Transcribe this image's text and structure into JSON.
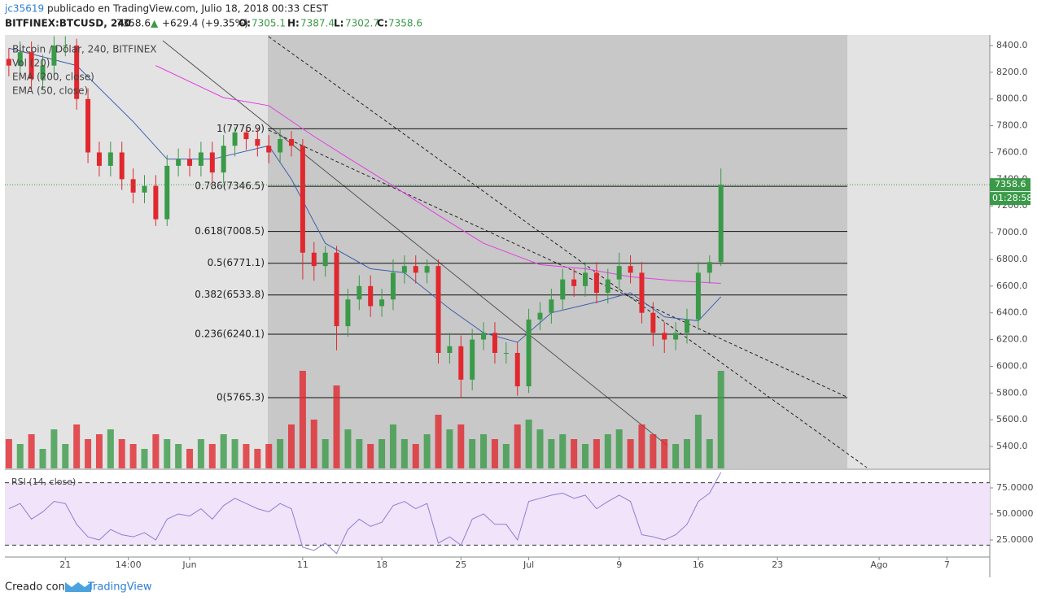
{
  "header": {
    "user": "jc35619",
    "published": "publicado en TradingView.com, Julio 18, 2018 00:33 CEST",
    "symbol": "BITFINEX:BTCUSD, 240",
    "last": 7358.6,
    "arrow": "▲",
    "change": "+629.4 (+9.35%)",
    "o_label": "O:",
    "open": 7305.1,
    "h_label": "H:",
    "high": 7387.4,
    "l_label": "L:",
    "low": 7302.7,
    "c_label": "C:",
    "close": 7358.6
  },
  "chart_data": {
    "type": "candlestick",
    "title": "Bitcoin / Dólar, 240, BITFINEX",
    "up_color": "#3a9a48",
    "down_color": "#e0282e",
    "x": [
      -16,
      -15,
      -14,
      -13,
      -12,
      -11,
      -10,
      -9,
      -8,
      -7,
      -6,
      -5,
      -4,
      -3,
      -2,
      -1,
      0,
      1,
      2,
      3,
      4,
      5,
      6,
      7,
      8,
      9,
      10,
      11,
      12,
      13,
      14,
      15,
      16,
      17,
      18,
      19,
      20,
      21,
      22,
      23,
      24,
      25,
      26,
      27,
      28,
      29,
      30,
      31,
      32,
      33,
      34,
      35,
      36,
      37,
      38,
      39,
      40,
      41,
      42,
      43,
      44,
      45,
      46,
      47
    ],
    "ohlc": [
      [
        8300,
        8380,
        8170,
        8250
      ],
      [
        8250,
        8430,
        8170,
        8350
      ],
      [
        8350,
        8430,
        8070,
        8150
      ],
      [
        8150,
        8330,
        8070,
        8250
      ],
      [
        8250,
        8470,
        8170,
        8400
      ],
      [
        8400,
        8470,
        8320,
        8400
      ],
      [
        8400,
        8450,
        7920,
        8000
      ],
      [
        8000,
        8080,
        7520,
        7600
      ],
      [
        7600,
        7680,
        7420,
        7500
      ],
      [
        7500,
        7680,
        7420,
        7600
      ],
      [
        7600,
        7680,
        7320,
        7400
      ],
      [
        7400,
        7480,
        7220,
        7300
      ],
      [
        7300,
        7430,
        7220,
        7350
      ],
      [
        7350,
        7430,
        7050,
        7100
      ],
      [
        7100,
        7580,
        7050,
        7500
      ],
      [
        7500,
        7630,
        7420,
        7550
      ],
      [
        7550,
        7630,
        7420,
        7500
      ],
      [
        7500,
        7680,
        7420,
        7600
      ],
      [
        7600,
        7680,
        7370,
        7450
      ],
      [
        7450,
        7730,
        7370,
        7650
      ],
      [
        7650,
        7790,
        7570,
        7750
      ],
      [
        7750,
        7790,
        7620,
        7700
      ],
      [
        7700,
        7780,
        7570,
        7650
      ],
      [
        7650,
        7730,
        7520,
        7600
      ],
      [
        7600,
        7777,
        7520,
        7700
      ],
      [
        7700,
        7760,
        7570,
        7650
      ],
      [
        7650,
        7700,
        6650,
        6850
      ],
      [
        6850,
        6930,
        6640,
        6750
      ],
      [
        6750,
        6900,
        6670,
        6850
      ],
      [
        6850,
        6900,
        6120,
        6300
      ],
      [
        6300,
        6580,
        6220,
        6500
      ],
      [
        6500,
        6680,
        6420,
        6600
      ],
      [
        6600,
        6680,
        6370,
        6450
      ],
      [
        6450,
        6580,
        6370,
        6500
      ],
      [
        6500,
        6800,
        6420,
        6700
      ],
      [
        6700,
        6830,
        6620,
        6750
      ],
      [
        6750,
        6830,
        6620,
        6700
      ],
      [
        6700,
        6800,
        6620,
        6750
      ],
      [
        6750,
        6800,
        6020,
        6100
      ],
      [
        6100,
        6250,
        6020,
        6150
      ],
      [
        6150,
        6230,
        5770,
        5900
      ],
      [
        5900,
        6280,
        5820,
        6200
      ],
      [
        6200,
        6330,
        6120,
        6250
      ],
      [
        6250,
        6330,
        6020,
        6100
      ],
      [
        6100,
        6180,
        6020,
        6100
      ],
      [
        6100,
        6180,
        5780,
        5850
      ],
      [
        5850,
        6430,
        5800,
        6350
      ],
      [
        6350,
        6480,
        6270,
        6400
      ],
      [
        6400,
        6580,
        6320,
        6500
      ],
      [
        6500,
        6730,
        6420,
        6650
      ],
      [
        6650,
        6730,
        6520,
        6600
      ],
      [
        6600,
        6780,
        6520,
        6700
      ],
      [
        6700,
        6780,
        6470,
        6550
      ],
      [
        6550,
        6730,
        6470,
        6650
      ],
      [
        6650,
        6850,
        6570,
        6750
      ],
      [
        6750,
        6830,
        6620,
        6700
      ],
      [
        6700,
        6780,
        6320,
        6400
      ],
      [
        6400,
        6480,
        6150,
        6250
      ],
      [
        6250,
        6330,
        6100,
        6200
      ],
      [
        6200,
        6330,
        6120,
        6250
      ],
      [
        6250,
        6430,
        6170,
        6350
      ],
      [
        6350,
        6780,
        6270,
        6700
      ],
      [
        6700,
        6830,
        6620,
        6780
      ],
      [
        6780,
        7480,
        6750,
        7358.6
      ]
    ],
    "volume": {
      "name": "Vol (20)",
      "values": [
        30,
        25,
        35,
        20,
        40,
        25,
        45,
        30,
        35,
        40,
        30,
        25,
        20,
        35,
        30,
        25,
        20,
        30,
        25,
        35,
        30,
        25,
        20,
        25,
        30,
        45,
        100,
        50,
        30,
        85,
        40,
        30,
        25,
        30,
        45,
        30,
        25,
        35,
        55,
        40,
        45,
        30,
        35,
        30,
        25,
        45,
        50,
        40,
        30,
        35,
        30,
        25,
        30,
        35,
        40,
        30,
        45,
        35,
        30,
        25,
        30,
        55,
        30,
        100
      ]
    },
    "series": [
      {
        "name": "EMA (200, close)",
        "color": "#e23fe0",
        "x": [
          -3,
          3,
          7,
          11,
          14,
          18,
          22,
          26,
          31,
          35,
          39,
          43,
          47
        ],
        "values": [
          8250,
          8010,
          7950,
          7720,
          7560,
          7350,
          7130,
          6920,
          6760,
          6730,
          6670,
          6640,
          6620
        ]
      },
      {
        "name": "EMA (50, close)",
        "color": "#3f5fae",
        "x": [
          -16,
          -10,
          -5,
          -2,
          2,
          7,
          9,
          12,
          16,
          19,
          23,
          26,
          29,
          32,
          36.5,
          39,
          42,
          45,
          47
        ],
        "values": [
          8380,
          8250,
          7830,
          7550,
          7550,
          7650,
          7400,
          6920,
          6730,
          6700,
          6430,
          6250,
          6180,
          6400,
          6490,
          6550,
          6370,
          6340,
          6520
        ]
      }
    ],
    "xlim": [
      -16.35,
      70.79
    ],
    "xticks": [
      {
        "value": -11,
        "label": "21"
      },
      {
        "value": -5.42,
        "label": "14:00"
      },
      {
        "value": 0,
        "label": "Jun"
      },
      {
        "value": 10,
        "label": "11"
      },
      {
        "value": 17,
        "label": "18"
      },
      {
        "value": 24,
        "label": "25"
      },
      {
        "value": 30,
        "label": "Jul"
      },
      {
        "value": 38,
        "label": "9"
      },
      {
        "value": 45,
        "label": "16"
      },
      {
        "value": 52,
        "label": "23"
      },
      {
        "value": 61,
        "label": "Ago"
      },
      {
        "value": 67,
        "label": "7"
      }
    ],
    "ylim": [
      5236,
      8479
    ],
    "yticks": [
      {
        "value": 5400,
        "label": "5400.0"
      },
      {
        "value": 5600,
        "label": "5600.0"
      },
      {
        "value": 5800,
        "label": "5800.0"
      },
      {
        "value": 6000,
        "label": "6000.0"
      },
      {
        "value": 6200,
        "label": "6200.0"
      },
      {
        "value": 6400,
        "label": "6400.0"
      },
      {
        "value": 6600,
        "label": "6600.0"
      },
      {
        "value": 6800,
        "label": "6800.0"
      },
      {
        "value": 7000,
        "label": "7000.0"
      },
      {
        "value": 7200,
        "label": "7200.0"
      },
      {
        "value": 7400,
        "label": "7400.0"
      },
      {
        "value": 7600,
        "label": "7600.0"
      },
      {
        "value": 7800,
        "label": "7800.0"
      },
      {
        "value": 8000,
        "label": "8000.0"
      },
      {
        "value": 8200,
        "label": "8200.0"
      },
      {
        "value": 8400,
        "label": "8400.0"
      }
    ],
    "fib_levels": [
      {
        "value": 7776.9,
        "label": "1(7776.9)"
      },
      {
        "value": 7346.5,
        "label": "0.786(7346.5)"
      },
      {
        "value": 7008.5,
        "label": "0.618(7008.5)"
      },
      {
        "value": 6771.1,
        "label": "0.5(6771.1)"
      },
      {
        "value": 6533.8,
        "label": "0.382(6533.8)"
      },
      {
        "value": 6240.1,
        "label": "0.236(6240.1)"
      },
      {
        "value": 5765.3,
        "label": "0(5765.3)"
      }
    ],
    "last_price": 7358.6,
    "countdown": "01:28:58",
    "rsi": {
      "name": "RSI (14, close)",
      "color": "#8c7fd6",
      "values": [
        55,
        60,
        45,
        52,
        62,
        60,
        40,
        28,
        25,
        35,
        30,
        28,
        32,
        25,
        45,
        50,
        48,
        55,
        45,
        58,
        65,
        60,
        55,
        52,
        60,
        55,
        18,
        15,
        22,
        12,
        35,
        45,
        38,
        42,
        58,
        62,
        55,
        60,
        22,
        28,
        20,
        45,
        50,
        40,
        40,
        25,
        62,
        65,
        68,
        70,
        65,
        68,
        55,
        62,
        68,
        62,
        30,
        28,
        25,
        30,
        40,
        62,
        70,
        90
      ],
      "ylim": [
        8.6,
        92.2
      ],
      "bands": [
        20,
        80
      ],
      "yticks": [
        {
          "value": 25,
          "label": "25.0000"
        },
        {
          "value": 50,
          "label": "50.0000"
        },
        {
          "value": 75,
          "label": "75.0000"
        }
      ]
    }
  },
  "footer": {
    "created": "Creado con",
    "brand": "TradingView"
  }
}
